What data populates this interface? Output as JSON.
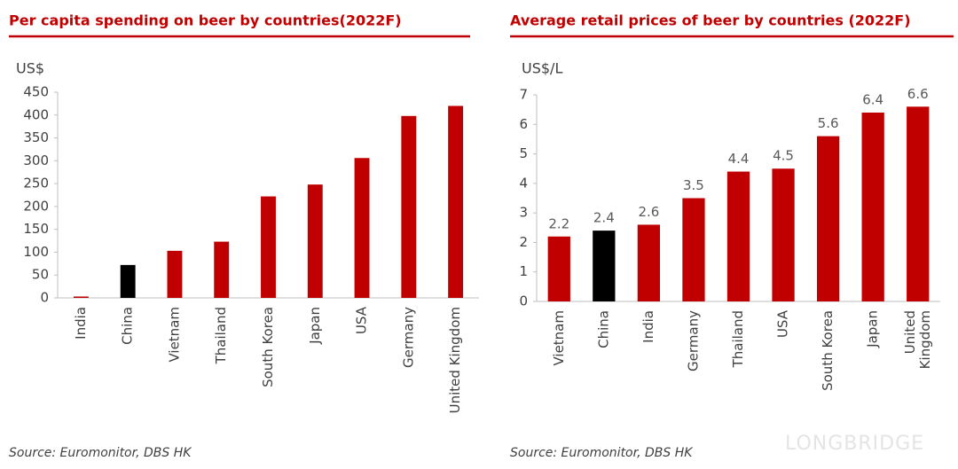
{
  "chart_data": [
    {
      "type": "bar",
      "title": "Per capita spending on beer by countries(2022F)",
      "y_label": "US$",
      "source": "Source: Euromonitor, DBS HK",
      "categories": [
        "India",
        "China",
        "Vietnam",
        "Thailand",
        "South Korea",
        "Japan",
        "USA",
        "Germany",
        "United Kingdom"
      ],
      "values": [
        3,
        72,
        103,
        123,
        222,
        248,
        306,
        398,
        420
      ],
      "colors": [
        "#c00000",
        "#000000",
        "#c00000",
        "#c00000",
        "#c00000",
        "#c00000",
        "#c00000",
        "#c00000",
        "#c00000"
      ],
      "ylim": [
        0,
        450
      ],
      "yticks": [
        0,
        50,
        100,
        150,
        200,
        250,
        300,
        350,
        400,
        450
      ],
      "data_labels": false
    },
    {
      "type": "bar",
      "title": "Average retail prices of beer by countries (2022F)",
      "y_label": "US$/L",
      "source": "Source: Euromonitor, DBS HK",
      "categories": [
        "Vietnam",
        "China",
        "India",
        "Germany",
        "Thailand",
        "USA",
        "South Korea",
        "Japan",
        "United Kingdom"
      ],
      "values": [
        2.2,
        2.4,
        2.6,
        3.5,
        4.4,
        4.5,
        5.6,
        6.4,
        6.6
      ],
      "colors": [
        "#c00000",
        "#000000",
        "#c00000",
        "#c00000",
        "#c00000",
        "#c00000",
        "#c00000",
        "#c00000",
        "#c00000"
      ],
      "ylim": [
        0,
        7
      ],
      "yticks": [
        0,
        1,
        2,
        3,
        4,
        5,
        6,
        7
      ],
      "data_labels": true
    }
  ],
  "watermark": "LONGBRIDGE"
}
